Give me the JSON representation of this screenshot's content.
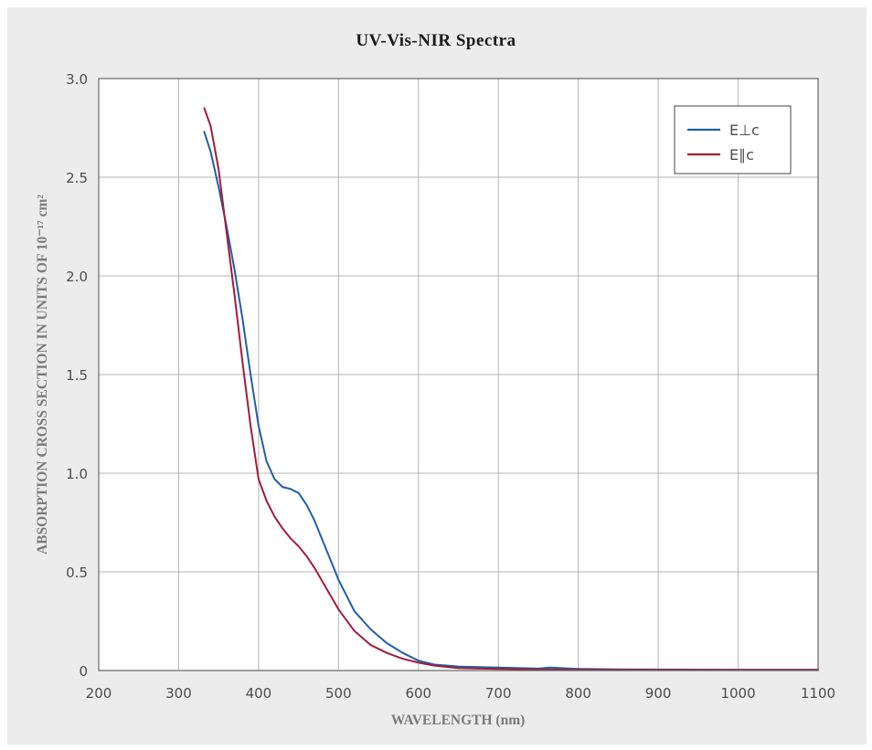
{
  "chart_data": {
    "type": "line",
    "title": "UV-Vis-NIR Spectra",
    "xlabel": "WAVELENGTH (nm)",
    "ylabel": "ABSORPTION CROSS SECTION IN UNITS OF 10⁻¹⁷ cm²",
    "xlim": [
      200,
      1100
    ],
    "ylim": [
      0,
      3.0
    ],
    "x_ticks": [
      "200",
      "300",
      "400",
      "500",
      "600",
      "700",
      "800",
      "900",
      "1000",
      "1100"
    ],
    "y_ticks": [
      "0",
      "0.5",
      "1.0",
      "1.5",
      "2.0",
      "2.5",
      "3.0"
    ],
    "grid": true,
    "legend_position": "top-right",
    "series": [
      {
        "name": "E⊥c",
        "color": "#1f5fa6",
        "x": [
          332,
          340,
          350,
          360,
          370,
          380,
          390,
          400,
          410,
          420,
          430,
          440,
          450,
          460,
          470,
          480,
          490,
          500,
          520,
          540,
          560,
          580,
          600,
          620,
          650,
          700,
          750,
          765,
          800,
          850,
          900,
          1000,
          1100
        ],
        "y": [
          2.73,
          2.63,
          2.45,
          2.25,
          2.03,
          1.78,
          1.5,
          1.24,
          1.06,
          0.97,
          0.93,
          0.92,
          0.9,
          0.84,
          0.76,
          0.66,
          0.56,
          0.46,
          0.3,
          0.21,
          0.14,
          0.09,
          0.05,
          0.03,
          0.02,
          0.015,
          0.01,
          0.015,
          0.008,
          0.006,
          0.005,
          0.004,
          0.004
        ]
      },
      {
        "name": "E∥c",
        "color": "#a11d3c",
        "x": [
          332,
          340,
          350,
          360,
          370,
          380,
          390,
          400,
          410,
          420,
          430,
          440,
          450,
          460,
          470,
          480,
          490,
          500,
          520,
          540,
          560,
          580,
          600,
          620,
          650,
          700,
          750,
          800,
          900,
          1000,
          1100
        ],
        "y": [
          2.85,
          2.76,
          2.54,
          2.22,
          1.9,
          1.56,
          1.24,
          0.97,
          0.86,
          0.78,
          0.72,
          0.67,
          0.63,
          0.58,
          0.52,
          0.45,
          0.38,
          0.31,
          0.2,
          0.13,
          0.09,
          0.06,
          0.04,
          0.025,
          0.012,
          0.008,
          0.005,
          0.004,
          0.003,
          0.003,
          0.003
        ]
      }
    ]
  }
}
